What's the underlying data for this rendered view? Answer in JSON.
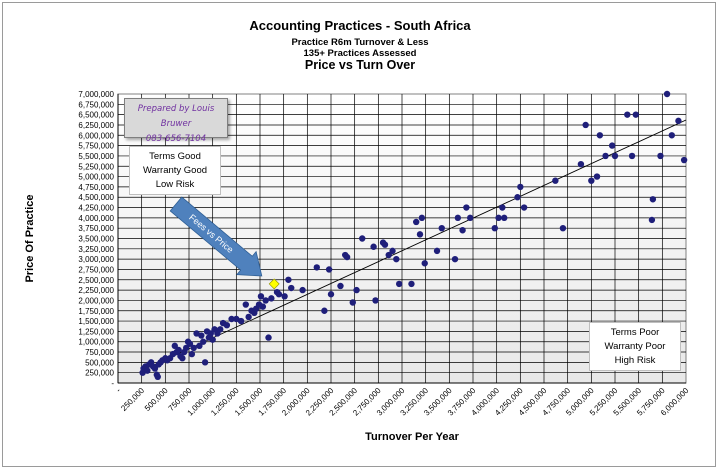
{
  "chart_data": {
    "type": "scatter",
    "title": "Accounting Practices  - South Africa",
    "subtitle_lines": [
      "Practice R6m Turnover  &  Less",
      "135+ Practices Assessed"
    ],
    "chart_heading": "Price vs Turn Over",
    "xlabel": "Turnover Per Year",
    "ylabel": "Price  Of Practice",
    "xlim": [
      0,
      6000000
    ],
    "ylim": [
      0,
      7000000
    ],
    "x_ticks": [
      "-",
      "250,000",
      "500,000",
      "750,000",
      "1,000,000",
      "1,250,000",
      "1,500,000",
      "1,750,000",
      "2,000,000",
      "2,250,000",
      "2,500,000",
      "2,750,000",
      "3,000,000",
      "3,250,000",
      "3,500,000",
      "3,750,000",
      "4,000,000",
      "4,250,000",
      "4,500,000",
      "4,750,000",
      "5,000,000",
      "5,250,000",
      "5,500,000",
      "5,750,000",
      "6,000,000"
    ],
    "y_ticks": [
      "-",
      "250,000",
      "500,000",
      "750,000",
      "1,000,000",
      "1,250,000",
      "1,500,000",
      "1,750,000",
      "2,000,000",
      "2,250,000",
      "2,500,000",
      "2,750,000",
      "3,000,000",
      "3,250,000",
      "3,500,000",
      "3,750,000",
      "4,000,000",
      "4,250,000",
      "4,500,000",
      "4,750,000",
      "5,000,000",
      "5,250,000",
      "5,500,000",
      "5,750,000",
      "6,000,000",
      "6,250,000",
      "6,500,000",
      "6,750,000",
      "7,000,000"
    ],
    "grid": true,
    "trendline": {
      "x": [
        250000,
        6000000
      ],
      "y": [
        300000,
        6370000
      ]
    },
    "highlight_point": {
      "x": 1650000,
      "y": 2400000
    },
    "points": [
      [
        260000,
        250000
      ],
      [
        270000,
        350000
      ],
      [
        290000,
        400000
      ],
      [
        310000,
        300000
      ],
      [
        330000,
        450000
      ],
      [
        350000,
        500000
      ],
      [
        370000,
        400000
      ],
      [
        390000,
        350000
      ],
      [
        410000,
        200000
      ],
      [
        420000,
        150000
      ],
      [
        430000,
        450000
      ],
      [
        450000,
        500000
      ],
      [
        470000,
        550000
      ],
      [
        500000,
        600000
      ],
      [
        520000,
        550000
      ],
      [
        550000,
        600000
      ],
      [
        580000,
        700000
      ],
      [
        600000,
        900000
      ],
      [
        620000,
        750000
      ],
      [
        640000,
        800000
      ],
      [
        660000,
        650000
      ],
      [
        680000,
        600000
      ],
      [
        700000,
        750000
      ],
      [
        720000,
        850000
      ],
      [
        740000,
        1000000
      ],
      [
        760000,
        950000
      ],
      [
        780000,
        700000
      ],
      [
        800000,
        850000
      ],
      [
        830000,
        1200000
      ],
      [
        860000,
        900000
      ],
      [
        880000,
        1150000
      ],
      [
        900000,
        1000000
      ],
      [
        920000,
        500000
      ],
      [
        940000,
        1250000
      ],
      [
        960000,
        1100000
      ],
      [
        980000,
        1200000
      ],
      [
        1000000,
        1050000
      ],
      [
        1020000,
        1300000
      ],
      [
        1050000,
        1200000
      ],
      [
        1080000,
        1300000
      ],
      [
        1110000,
        1450000
      ],
      [
        1150000,
        1400000
      ],
      [
        1200000,
        1550000
      ],
      [
        1250000,
        1550000
      ],
      [
        1300000,
        1500000
      ],
      [
        1350000,
        1900000
      ],
      [
        1380000,
        1600000
      ],
      [
        1410000,
        1750000
      ],
      [
        1440000,
        1700000
      ],
      [
        1460000,
        1800000
      ],
      [
        1490000,
        1900000
      ],
      [
        1510000,
        2100000
      ],
      [
        1530000,
        1850000
      ],
      [
        1560000,
        2000000
      ],
      [
        1590000,
        1100000
      ],
      [
        1620000,
        2050000
      ],
      [
        1680000,
        2200000
      ],
      [
        1700000,
        2150000
      ],
      [
        1760000,
        2100000
      ],
      [
        1800000,
        2500000
      ],
      [
        1830000,
        2300000
      ],
      [
        1950000,
        2250000
      ],
      [
        2100000,
        2800000
      ],
      [
        2180000,
        1750000
      ],
      [
        2230000,
        2750000
      ],
      [
        2250000,
        2150000
      ],
      [
        2350000,
        2350000
      ],
      [
        2400000,
        3100000
      ],
      [
        2420000,
        3050000
      ],
      [
        2480000,
        1950000
      ],
      [
        2520000,
        2250000
      ],
      [
        2580000,
        3500000
      ],
      [
        2700000,
        3300000
      ],
      [
        2720000,
        2000000
      ],
      [
        2800000,
        3400000
      ],
      [
        2820000,
        3350000
      ],
      [
        2860000,
        3100000
      ],
      [
        2900000,
        3200000
      ],
      [
        2940000,
        3000000
      ],
      [
        2970000,
        2400000
      ],
      [
        3100000,
        2400000
      ],
      [
        3150000,
        3900000
      ],
      [
        3190000,
        3600000
      ],
      [
        3210000,
        4000000
      ],
      [
        3240000,
        2900000
      ],
      [
        3370000,
        3200000
      ],
      [
        3420000,
        3750000
      ],
      [
        3560000,
        3000000
      ],
      [
        3590000,
        4000000
      ],
      [
        3640000,
        3700000
      ],
      [
        3680000,
        4250000
      ],
      [
        3720000,
        4000000
      ],
      [
        3980000,
        3750000
      ],
      [
        4020000,
        4000000
      ],
      [
        4060000,
        4250000
      ],
      [
        4080000,
        4000000
      ],
      [
        4220000,
        4500000
      ],
      [
        4250000,
        4750000
      ],
      [
        4290000,
        4250000
      ],
      [
        4620000,
        4900000
      ],
      [
        4700000,
        3750000
      ],
      [
        4890000,
        5300000
      ],
      [
        4940000,
        6250000
      ],
      [
        5000000,
        4900000
      ],
      [
        5060000,
        5000000
      ],
      [
        5090000,
        6000000
      ],
      [
        5150000,
        5500000
      ],
      [
        5220000,
        5750000
      ],
      [
        5250000,
        5500000
      ],
      [
        5380000,
        6500000
      ],
      [
        5430000,
        5500000
      ],
      [
        5470000,
        6500000
      ],
      [
        5640000,
        3950000
      ],
      [
        5650000,
        4450000
      ],
      [
        5730000,
        5500000
      ],
      [
        5800000,
        7000000
      ],
      [
        5850000,
        6000000
      ],
      [
        5920000,
        6350000
      ],
      [
        5980000,
        5400000
      ]
    ]
  },
  "annotations": {
    "author_name": "Prepared by Louis Bruwer",
    "author_phone": "083-656-7104",
    "good_lines": [
      "Terms Good",
      "Warranty Good",
      "Low Risk"
    ],
    "poor_lines": [
      "Terms Poor",
      "Warranty Poor",
      "High Risk"
    ],
    "arrow_label": "Fees vs Price"
  },
  "colors": {
    "point": "#1f1f7a",
    "highlight": "#ffff00",
    "arrow": "#4f81bd",
    "author_text": "#7030a0"
  }
}
